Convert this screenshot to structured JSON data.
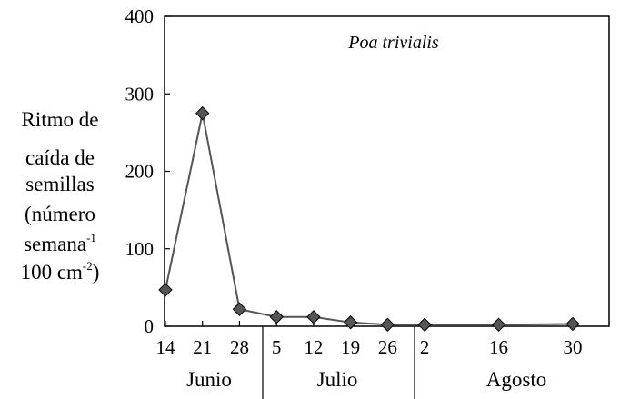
{
  "chart_data": {
    "type": "line",
    "title": "Poa trivialis",
    "ylabel_lines": [
      [
        "Ritmo de"
      ],
      [
        "caída de"
      ],
      [
        "semillas"
      ],
      [
        "(número"
      ],
      [
        "semana",
        "-1"
      ],
      [
        "100 cm",
        "-2",
        ")"
      ]
    ],
    "ylim": [
      0,
      400
    ],
    "yticks": [
      "0",
      "100",
      "200",
      "300",
      "400"
    ],
    "x_tick_labels": [
      "14",
      "21",
      "28",
      "5",
      "12",
      "19",
      "26",
      "2",
      "16",
      "30"
    ],
    "x_day_index": [
      0,
      7,
      14,
      21,
      28,
      35,
      42,
      49,
      63,
      77
    ],
    "months": [
      "Junio",
      "Julio",
      "Agosto"
    ],
    "series": [
      {
        "values": [
          47,
          275,
          22,
          12,
          12,
          5,
          2,
          2,
          2,
          3
        ],
        "marker": "diamond",
        "color": "#555555"
      }
    ],
    "grid": false
  }
}
